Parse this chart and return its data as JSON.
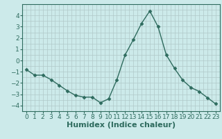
{
  "x": [
    0,
    1,
    2,
    3,
    4,
    5,
    6,
    7,
    8,
    9,
    10,
    11,
    12,
    13,
    14,
    15,
    16,
    17,
    18,
    19,
    20,
    21,
    22,
    23
  ],
  "y": [
    -0.8,
    -1.3,
    -1.3,
    -1.7,
    -2.2,
    -2.7,
    -3.1,
    -3.25,
    -3.25,
    -3.75,
    -3.4,
    -1.7,
    0.5,
    1.85,
    3.3,
    4.4,
    3.0,
    0.5,
    -0.7,
    -1.75,
    -2.4,
    -2.75,
    -3.3,
    -3.85
  ],
  "line_color": "#2e6b5e",
  "marker": "D",
  "marker_size": 2.5,
  "bg_color": "#cceaea",
  "grid_color": "#b0c8c8",
  "xlabel": "Humidex (Indice chaleur)",
  "ylim": [
    -4.5,
    5.0
  ],
  "xlim": [
    -0.5,
    23.5
  ],
  "yticks": [
    -4,
    -3,
    -2,
    -1,
    0,
    1,
    2,
    3,
    4
  ],
  "xticks": [
    0,
    1,
    2,
    3,
    4,
    5,
    6,
    7,
    8,
    9,
    10,
    11,
    12,
    13,
    14,
    15,
    16,
    17,
    18,
    19,
    20,
    21,
    22,
    23
  ],
  "tick_fontsize": 6.5,
  "label_fontsize": 8
}
